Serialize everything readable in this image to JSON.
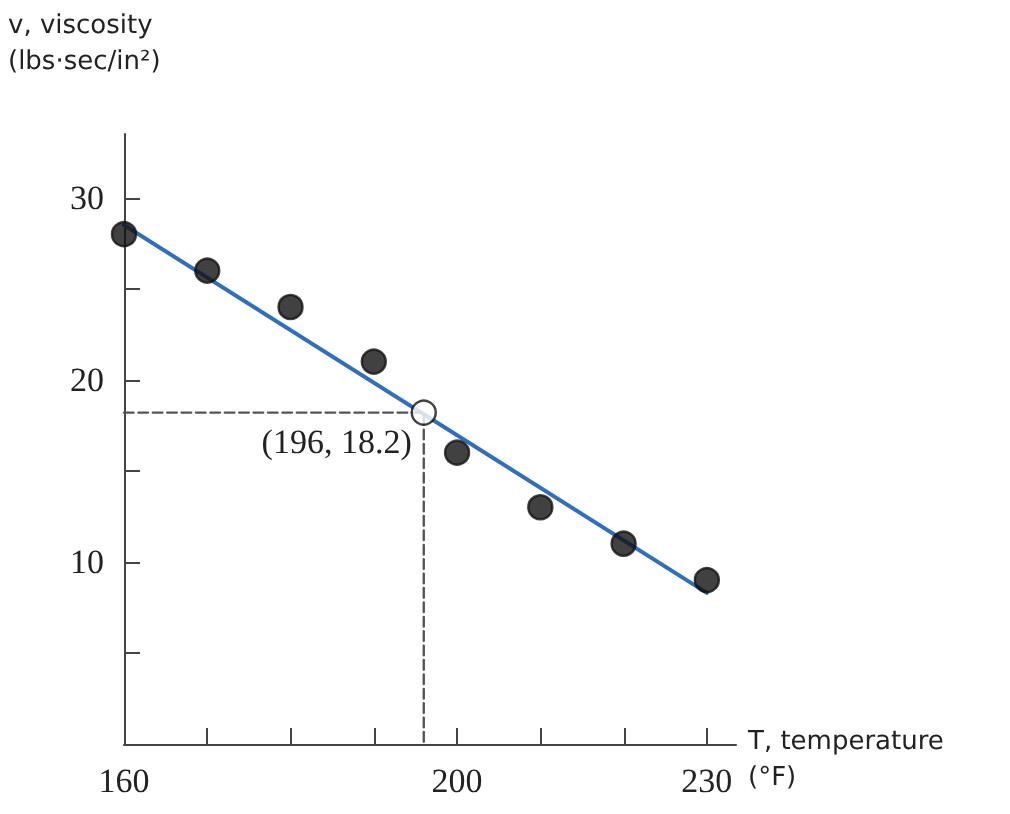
{
  "chart_data": {
    "type": "scatter",
    "xlabel": "T, temperature (°F)",
    "ylabel": "v, viscosity (lbs·sec/in²)",
    "xlim": [
      160,
      233.5
    ],
    "ylim": [
      0,
      33.5
    ],
    "xticks": [
      160,
      {
        "value": 170,
        "label": null
      },
      {
        "value": 180,
        "label": null
      },
      {
        "value": 190,
        "label": null
      },
      200,
      {
        "value": 210,
        "label": null
      },
      {
        "value": 220,
        "label": null
      },
      230
    ],
    "yticks": [
      {
        "value": 5,
        "label": null
      },
      10,
      {
        "value": 15,
        "label": null
      },
      20,
      {
        "value": 25,
        "label": null
      },
      30
    ],
    "grid": false,
    "series": [
      {
        "type": "line",
        "color": "#2f6fc0",
        "x": [
          160,
          230
        ],
        "values": [
          28.5,
          8.3
        ],
        "marker": "none",
        "line_style": "solid"
      },
      {
        "type": "line",
        "color": "#555555",
        "x": [
          160,
          196,
          196
        ],
        "values": [
          18.2,
          18.2,
          0
        ],
        "marker": "none",
        "line_style": "dashed"
      },
      {
        "color": "#111111",
        "x": [
          160,
          170,
          180,
          190,
          200,
          210,
          220,
          230
        ],
        "values": [
          28,
          26,
          24,
          21,
          16,
          13,
          11,
          9
        ],
        "marker": "circle"
      },
      {
        "color": "#ffffff",
        "x": [
          196
        ],
        "values": [
          18.2
        ],
        "marker": "circle"
      }
    ],
    "annotations": [
      {
        "text": "(196, 18.2)",
        "x": 196,
        "y": 18.2
      }
    ]
  }
}
